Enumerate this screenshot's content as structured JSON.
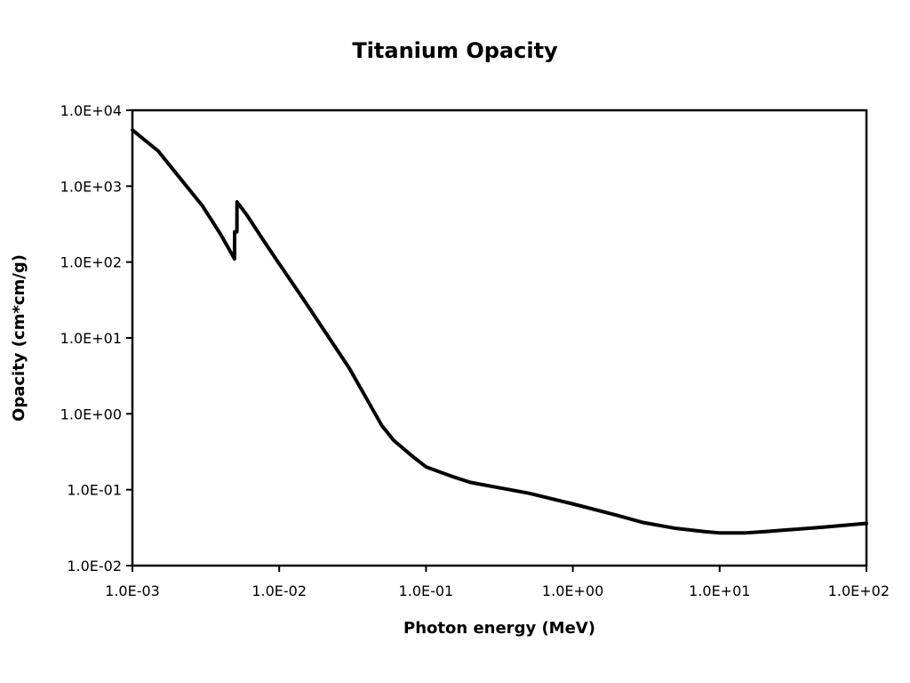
{
  "chart_data": {
    "type": "line",
    "title": "Titanium Opacity",
    "xlabel": "Photon energy (MeV)",
    "ylabel": "Opacity (cm*cm/g)",
    "xscale": "log",
    "yscale": "log",
    "xlim": [
      0.001,
      100
    ],
    "ylim": [
      0.01,
      10000
    ],
    "grid": false,
    "legend": "none",
    "x_ticks": [
      "1.0E-03",
      "1.0E-02",
      "1.0E-01",
      "1.0E+00",
      "1.0E+01",
      "1.0E+02"
    ],
    "y_ticks": [
      "1.0E-02",
      "1.0E-01",
      "1.0E+00",
      "1.0E+01",
      "1.0E+02",
      "1.0E+03",
      "1.0E+04"
    ],
    "line_color": "#000000",
    "series": [
      {
        "x": [
          0.001,
          0.0015,
          0.002,
          0.003,
          0.004,
          0.00496,
          0.00497,
          0.00515,
          0.00516,
          0.006,
          0.008,
          0.01,
          0.015,
          0.02,
          0.03,
          0.04,
          0.05,
          0.06,
          0.08,
          0.1,
          0.15,
          0.2,
          0.3,
          0.5,
          1,
          2,
          3,
          5,
          8,
          10,
          15,
          20,
          50,
          100
        ],
        "y": [
          5500,
          2900,
          1450,
          550,
          230,
          110,
          250,
          250,
          620,
          420,
          180,
          95,
          30,
          13,
          4,
          1.5,
          0.7,
          0.45,
          0.28,
          0.2,
          0.15,
          0.125,
          0.108,
          0.09,
          0.065,
          0.046,
          0.037,
          0.031,
          0.028,
          0.027,
          0.027,
          0.028,
          0.032,
          0.036
        ]
      }
    ]
  }
}
